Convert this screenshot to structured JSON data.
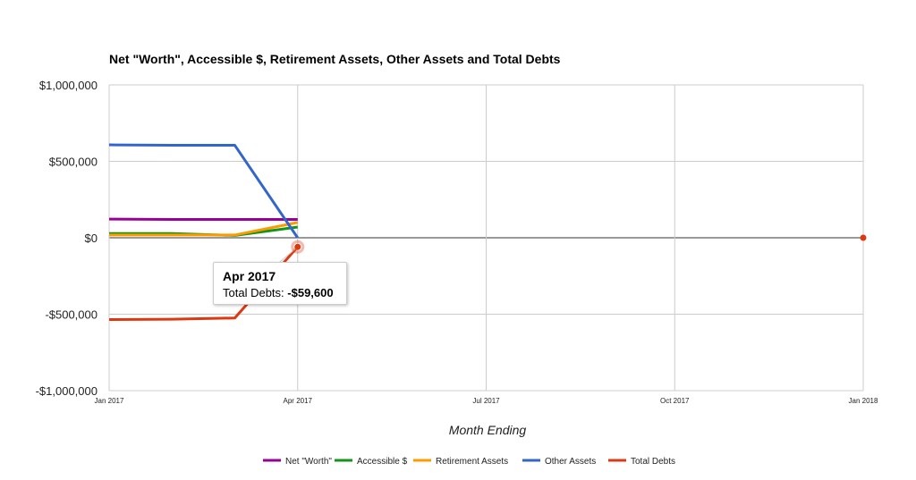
{
  "chart_data": {
    "type": "line",
    "title": "Net \"Worth\", Accessible $, Retirement Assets, Other Assets and Total Debts",
    "xlabel": "Month Ending",
    "ylabel": "",
    "x": [
      "Jan 2017",
      "Feb 2017",
      "Mar 2017",
      "Apr 2017"
    ],
    "x_ticks": [
      "Jan 2017",
      "Apr 2017",
      "Jul 2017",
      "Oct 2017",
      "Jan 2018"
    ],
    "y_ticks": [
      "$1,000,000",
      "$500,000",
      "$0",
      "-$500,000",
      "-$1,000,000"
    ],
    "ylim": [
      -1000000,
      1000000
    ],
    "xlim": [
      "Jan 2017",
      "Jan 2018"
    ],
    "grid": true,
    "legend_position": "bottom",
    "series": [
      {
        "name": "Net \"Worth\"",
        "color": "#990099",
        "values": [
          122000,
          120000,
          120000,
          120000
        ]
      },
      {
        "name": "Accessible $",
        "color": "#109618",
        "values": [
          28000,
          28000,
          15000,
          70000
        ]
      },
      {
        "name": "Retirement Assets",
        "color": "#ff9900",
        "values": [
          18000,
          18000,
          18000,
          100000
        ]
      },
      {
        "name": "Other Assets",
        "color": "#3366cc",
        "values": [
          608000,
          605000,
          605000,
          0
        ]
      },
      {
        "name": "Total Debts",
        "color": "#dc3912",
        "values": [
          -535000,
          -533000,
          -525000,
          -59600
        ]
      }
    ],
    "extra_point": {
      "series": "Total Debts",
      "x": "Jan 2018",
      "value": 0
    },
    "tooltip": {
      "title": "Apr 2017",
      "label": "Total Debts:",
      "value": "-$59,600"
    }
  }
}
